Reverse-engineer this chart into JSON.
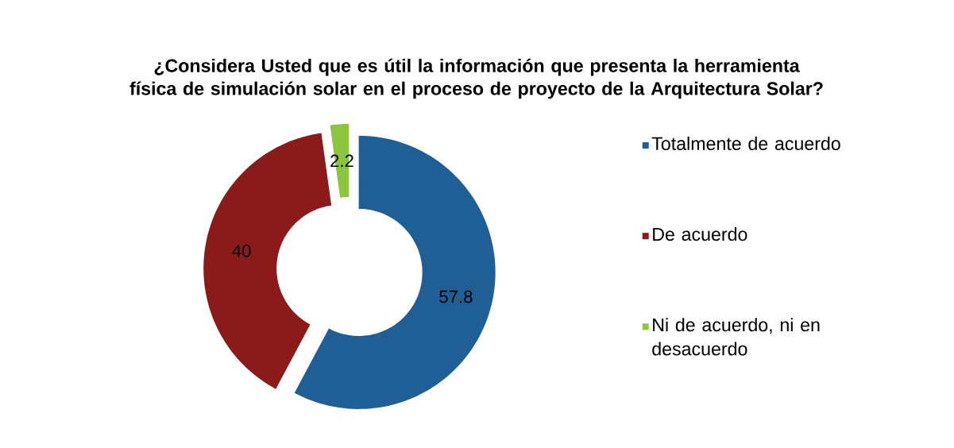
{
  "chart_data": {
    "type": "donut",
    "title": "¿Considera Usted que es útil la información que presenta la herramienta física de simulación solar en el proceso de proyecto de la Arquitectura Solar?",
    "categories": [
      "Totalmente de acuerdo",
      "De acuerdo",
      "Ni de acuerdo, ni en desacuerdo"
    ],
    "values": [
      57.8,
      40,
      2.2
    ],
    "colors": [
      "#1f5f96",
      "#8b1a1a",
      "#8cc63f"
    ],
    "data_labels": true,
    "legend": "right"
  }
}
